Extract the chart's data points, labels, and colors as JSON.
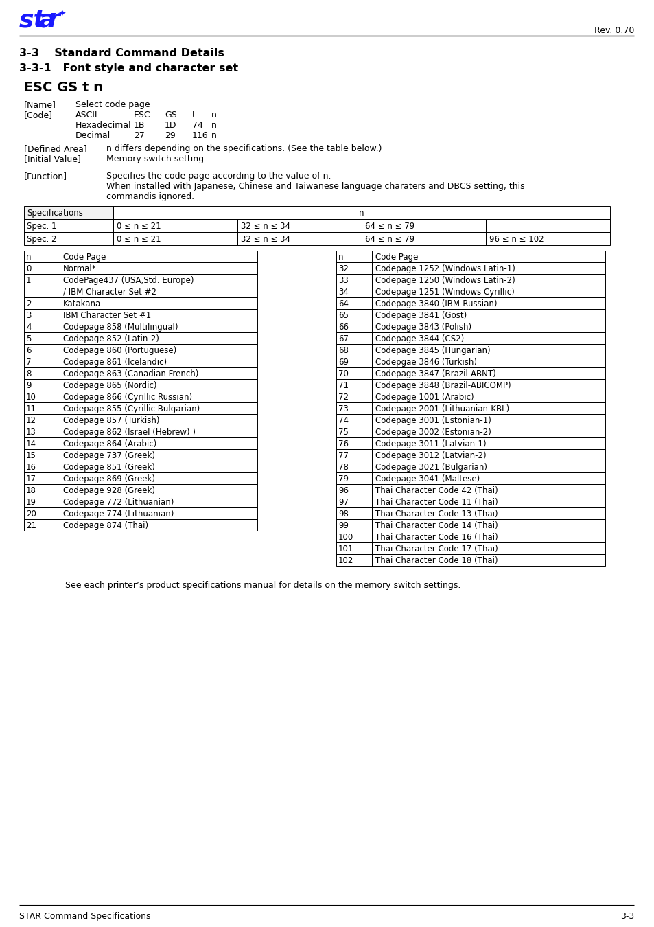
{
  "title_33": "3-3    Standard Command Details",
  "title_331": "3-3-1   Font style and character set",
  "cmd_title": " ESC GS t n",
  "name_label": "[Name]",
  "name_value": "Select code page",
  "code_label": "[Code]",
  "code_rows": [
    [
      "ASCII",
      "ESC",
      "GS",
      "t",
      "n"
    ],
    [
      "Hexadecimal",
      "1B",
      "1D",
      "74",
      "n"
    ],
    [
      "Decimal",
      "27",
      "29",
      "116",
      "n"
    ]
  ],
  "defined_area_label": "[Defined Area]",
  "defined_area_value": "n differs depending on the specifications. (See the table below.)",
  "initial_value_label": "[Initial Value]",
  "initial_value_value": "Memory switch setting",
  "function_label": "[Function]",
  "function_line1": "Specifies the code page according to the value of n.",
  "function_line2": "When installed with Japanese, Chinese and Taiwanese language charaters and DBCS setting, this",
  "function_line3": "commandis ignored.",
  "spec_rows": [
    [
      "Spec. 1",
      "0 ≤ n ≤ 21",
      "32 ≤ n ≤ 34",
      "64 ≤ n ≤ 79",
      ""
    ],
    [
      "Spec. 2",
      "0 ≤ n ≤ 21",
      "32 ≤ n ≤ 34",
      "64 ≤ n ≤ 79",
      "96 ≤ n ≤ 102"
    ]
  ],
  "left_table_rows": [
    [
      "0",
      "Normal*"
    ],
    [
      "1",
      "CodePage437 (USA,Std. Europe)\n/ IBM Character Set #2"
    ],
    [
      "2",
      "Katakana"
    ],
    [
      "3",
      "IBM Character Set #1"
    ],
    [
      "4",
      "Codepage 858 (Multilingual)"
    ],
    [
      "5",
      "Codepage 852 (Latin-2)"
    ],
    [
      "6",
      "Codepage 860 (Portuguese)"
    ],
    [
      "7",
      "Codepage 861 (Icelandic)"
    ],
    [
      "8",
      "Codepage 863 (Canadian French)"
    ],
    [
      "9",
      "Codepage 865 (Nordic)"
    ],
    [
      "10",
      "Codepage 866 (Cyrillic Russian)"
    ],
    [
      "11",
      "Codepage 855 (Cyrillic Bulgarian)"
    ],
    [
      "12",
      "Codepage 857 (Turkish)"
    ],
    [
      "13",
      "Codepage 862 (Israel (Hebrew) )"
    ],
    [
      "14",
      "Codepage 864 (Arabic)"
    ],
    [
      "15",
      "Codepage 737 (Greek)"
    ],
    [
      "16",
      "Codepage 851 (Greek)"
    ],
    [
      "17",
      "Codepage 869 (Greek)"
    ],
    [
      "18",
      "Codepage 928 (Greek)"
    ],
    [
      "19",
      "Codepage 772 (Lithuanian)"
    ],
    [
      "20",
      "Codepage 774 (Lithuanian)"
    ],
    [
      "21",
      "Codepage 874 (Thai)"
    ]
  ],
  "right_table_rows": [
    [
      "32",
      "Codepage 1252 (Windows Latin-1)"
    ],
    [
      "33",
      "Codepage 1250 (Windows Latin-2)"
    ],
    [
      "34",
      "Codepage 1251 (Windows Cyrillic)"
    ],
    [
      "64",
      "Codepage 3840 (IBM-Russian)"
    ],
    [
      "65",
      "Codepage 3841 (Gost)"
    ],
    [
      "66",
      "Codepage 3843 (Polish)"
    ],
    [
      "67",
      "Codepage 3844 (CS2)"
    ],
    [
      "68",
      "Codepage 3845 (Hungarian)"
    ],
    [
      "69",
      "Codepgae 3846 (Turkish)"
    ],
    [
      "70",
      "Codepage 3847 (Brazil-ABNT)"
    ],
    [
      "71",
      "Codepage 3848 (Brazil-ABICOMP)"
    ],
    [
      "72",
      "Codepage 1001 (Arabic)"
    ],
    [
      "73",
      "Codepage 2001 (Lithuanian-KBL)"
    ],
    [
      "74",
      "Codepage 3001 (Estonian-1)"
    ],
    [
      "75",
      "Codepage 3002 (Estonian-2)"
    ],
    [
      "76",
      "Codepage 3011 (Latvian-1)"
    ],
    [
      "77",
      "Codepage 3012 (Latvian-2)"
    ],
    [
      "78",
      "Codepage 3021 (Bulgarian)"
    ],
    [
      "79",
      "Codepage 3041 (Maltese)"
    ],
    [
      "96",
      "Thai Character Code 42 (Thai)"
    ],
    [
      "97",
      "Thai Character Code 11 (Thai)"
    ],
    [
      "98",
      "Thai Character Code 13 (Thai)"
    ],
    [
      "99",
      "Thai Character Code 14 (Thai)"
    ],
    [
      "100",
      "Thai Character Code 16 (Thai)"
    ],
    [
      "101",
      "Thai Character Code 17 (Thai)"
    ],
    [
      "102",
      "Thai Character Code 18 (Thai)"
    ]
  ],
  "footer_left": "STAR Command Specifications",
  "footer_right": "3-3",
  "footer_note": "See each printer’s product specifications manual for details on the memory switch settings.",
  "rev_text": "Rev. 0.70",
  "blue_color": "#1a1aff",
  "bg_color": "#ffffff"
}
